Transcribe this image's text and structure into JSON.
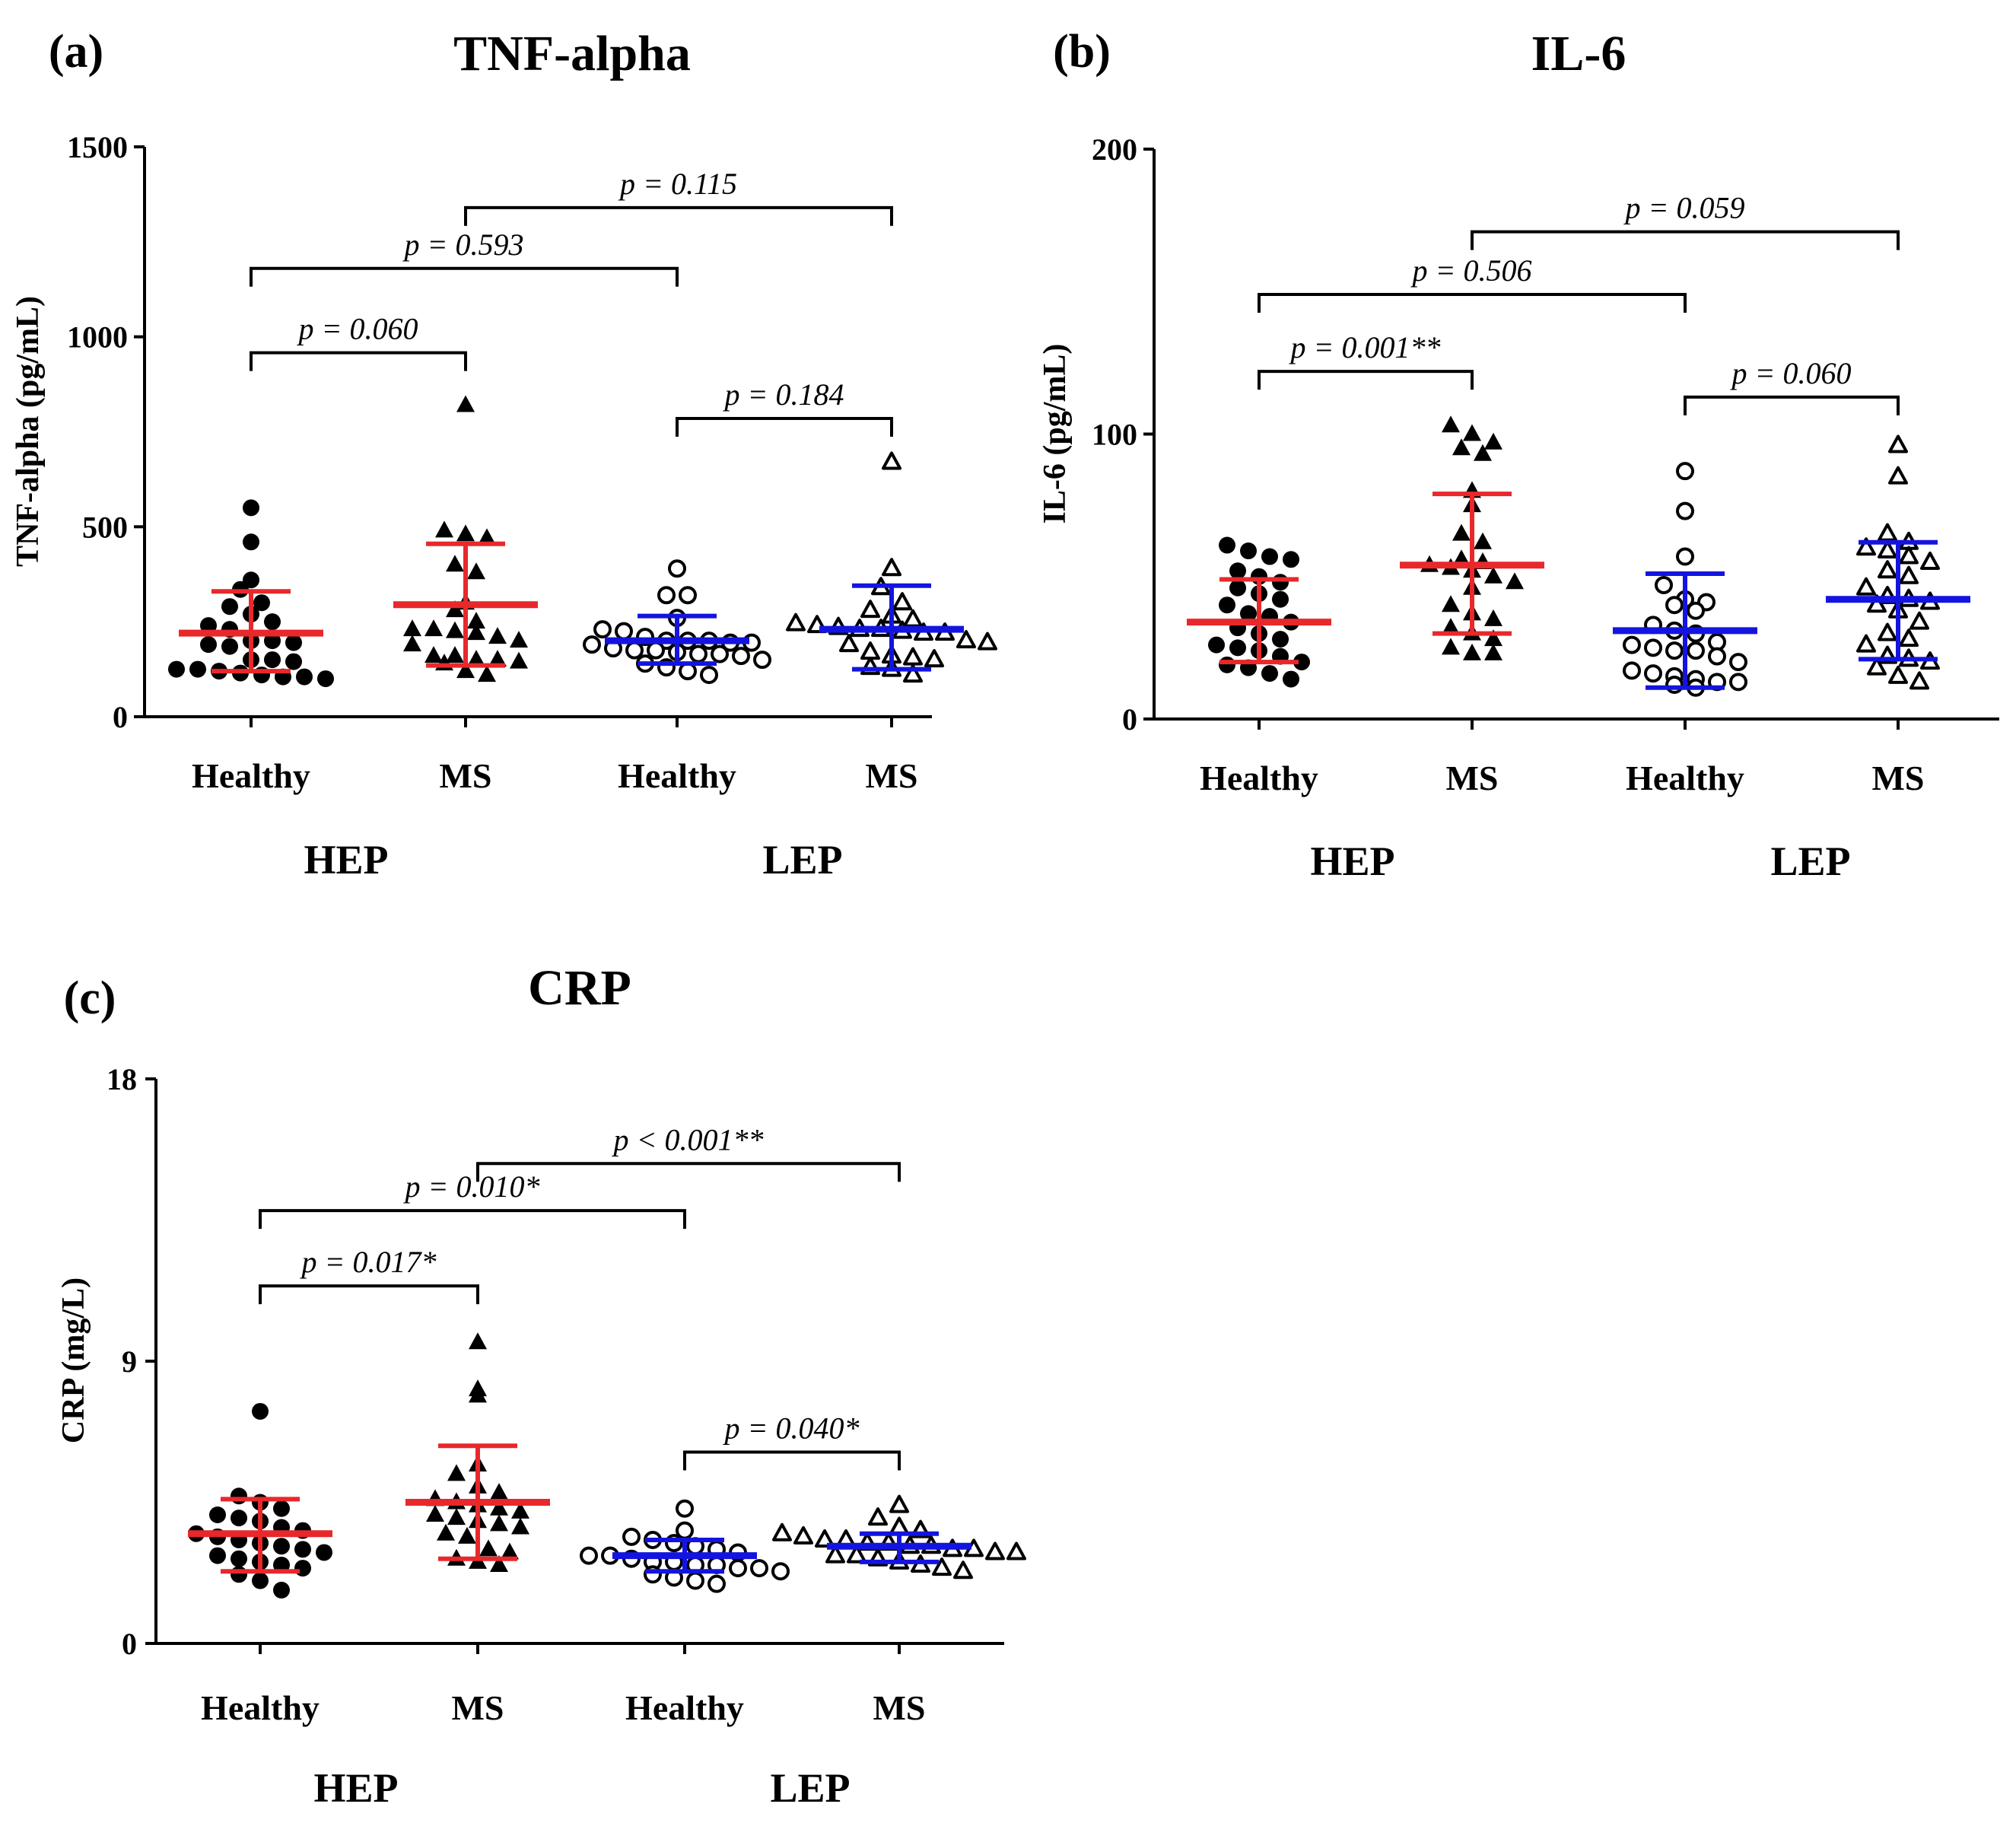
{
  "chart_data": [
    {
      "id": "a",
      "type": "scatter",
      "panel_label": "(a)",
      "title": "TNF-alpha",
      "ylabel": "TNF-alpha (pg/mL)",
      "ylim": [
        0,
        1500
      ],
      "yticks": [
        "0",
        "500",
        "1000",
        "1500"
      ],
      "ytick_values": [
        0,
        500,
        1000,
        1500
      ],
      "categories": [
        "Healthy",
        "MS",
        "Healthy",
        "MS"
      ],
      "groups": [
        {
          "label": "HEP",
          "spans": [
            0,
            1
          ]
        },
        {
          "label": "LEP",
          "spans": [
            2,
            3
          ]
        }
      ],
      "series": [
        {
          "name": "HEP Healthy",
          "marker": "filled-circle",
          "color": "#e8282b",
          "mean": 220,
          "sd_low": 120,
          "sd_high": 330,
          "values": [
            550,
            460,
            360,
            335,
            300,
            290,
            270,
            250,
            240,
            230,
            200,
            200,
            195,
            190,
            185,
            150,
            150,
            145,
            125,
            125,
            120,
            115,
            110,
            105,
            105,
            100
          ]
        },
        {
          "name": "HEP MS",
          "marker": "filled-triangle",
          "color": "#e8282b",
          "mean": 295,
          "sd_low": 135,
          "sd_high": 455,
          "values": [
            820,
            490,
            480,
            470,
            400,
            380,
            300,
            280,
            250,
            230,
            230,
            225,
            220,
            210,
            200,
            190,
            160,
            160,
            150,
            150,
            145,
            140,
            120,
            110
          ]
        },
        {
          "name": "LEP Healthy",
          "marker": "open-circle",
          "color": "#1414e0",
          "mean": 200,
          "sd_low": 140,
          "sd_high": 265,
          "values": [
            390,
            320,
            320,
            260,
            230,
            225,
            210,
            200,
            200,
            200,
            195,
            195,
            190,
            180,
            175,
            175,
            170,
            165,
            165,
            160,
            150,
            140,
            130,
            120,
            110
          ]
        },
        {
          "name": "LEP MS",
          "marker": "open-triangle",
          "color": "#1414e0",
          "mean": 230,
          "sd_low": 125,
          "sd_high": 345,
          "values": [
            670,
            390,
            340,
            300,
            280,
            265,
            255,
            245,
            240,
            235,
            230,
            230,
            225,
            220,
            220,
            200,
            195,
            190,
            170,
            160,
            155,
            150,
            130,
            125,
            110
          ]
        }
      ],
      "comparisons": [
        {
          "from": 0,
          "to": 1,
          "level": 958,
          "text": "p = 0.060"
        },
        {
          "from": 0,
          "to": 2,
          "level": 1180,
          "text": "p = 0.593"
        },
        {
          "from": 1,
          "to": 3,
          "level": 1340,
          "text": "p = 0.115"
        },
        {
          "from": 2,
          "to": 3,
          "level": 785,
          "text": "p = 0.184"
        }
      ]
    },
    {
      "id": "b",
      "type": "scatter",
      "panel_label": "(b)",
      "title": "IL-6",
      "ylabel": "IL-6 (pg/mL)",
      "ylim": [
        0,
        200
      ],
      "yticks": [
        "0",
        "100",
        "200"
      ],
      "ytick_values": [
        0,
        100,
        200
      ],
      "categories": [
        "Healthy",
        "MS",
        "Healthy",
        "MS"
      ],
      "groups": [
        {
          "label": "HEP",
          "spans": [
            0,
            1
          ]
        },
        {
          "label": "LEP",
          "spans": [
            2,
            3
          ]
        }
      ],
      "series": [
        {
          "name": "HEP Healthy",
          "marker": "filled-circle",
          "color": "#e8282b",
          "mean": 34,
          "sd_low": 20,
          "sd_high": 49,
          "values": [
            61,
            59,
            57,
            56,
            52,
            50,
            48,
            46,
            44,
            42,
            40,
            37,
            36,
            34,
            32,
            30,
            28,
            26,
            25,
            24,
            22,
            20,
            19,
            18,
            16,
            14
          ]
        },
        {
          "name": "HEP MS",
          "marker": "filled-triangle",
          "color": "#e8282b",
          "mean": 54,
          "sd_low": 30,
          "sd_high": 79,
          "values": [
            103,
            100,
            97,
            95,
            93,
            80,
            75,
            65,
            62,
            56,
            55,
            54,
            53,
            52,
            50,
            48,
            46,
            40,
            37,
            35,
            32,
            30,
            28,
            25,
            23,
            23
          ]
        },
        {
          "name": "LEP Healthy",
          "marker": "open-circle",
          "color": "#1414e0",
          "mean": 31,
          "sd_low": 11,
          "sd_high": 51,
          "values": [
            87,
            73,
            57,
            47,
            42,
            41,
            40,
            38,
            33,
            31,
            30,
            27,
            26,
            25,
            24,
            24,
            22,
            20,
            17,
            16,
            15,
            14,
            13,
            13,
            12,
            11
          ]
        },
        {
          "name": "LEP MS",
          "marker": "open-triangle",
          "color": "#1414e0",
          "mean": 42,
          "sd_low": 21,
          "sd_high": 62,
          "values": [
            96,
            85,
            65,
            62,
            60,
            59,
            57,
            55,
            52,
            50,
            46,
            43,
            42,
            41,
            40,
            38,
            34,
            30,
            28,
            26,
            22,
            21,
            20,
            18,
            15,
            13
          ]
        }
      ],
      "comparisons": [
        {
          "from": 0,
          "to": 1,
          "level": 122,
          "text": "p = 0.001**"
        },
        {
          "from": 0,
          "to": 2,
          "level": 149,
          "text": "p = 0.506"
        },
        {
          "from": 1,
          "to": 3,
          "level": 171,
          "text": "p = 0.059"
        },
        {
          "from": 2,
          "to": 3,
          "level": 113,
          "text": "p = 0.060"
        }
      ]
    },
    {
      "id": "c",
      "type": "scatter",
      "panel_label": "(c)",
      "title": "CRP",
      "ylabel": "CRP (mg/L)",
      "ylim": [
        0,
        18
      ],
      "yticks": [
        "0",
        "9",
        "18"
      ],
      "ytick_values": [
        0,
        9,
        18
      ],
      "categories": [
        "Healthy",
        "MS",
        "Healthy",
        "MS"
      ],
      "groups": [
        {
          "label": "HEP",
          "spans": [
            0,
            1
          ]
        },
        {
          "label": "LEP",
          "spans": [
            2,
            3
          ]
        }
      ],
      "series": [
        {
          "name": "HEP Healthy",
          "marker": "filled-circle",
          "color": "#e8282b",
          "mean": 3.5,
          "sd_low": 2.3,
          "sd_high": 4.6,
          "values": [
            7.4,
            4.7,
            4.5,
            4.3,
            4.1,
            4.0,
            3.9,
            3.7,
            3.6,
            3.5,
            3.4,
            3.3,
            3.2,
            3.1,
            3.0,
            2.9,
            2.8,
            2.7,
            2.6,
            2.5,
            2.4,
            2.2,
            2.0,
            1.7
          ]
        },
        {
          "name": "HEP MS",
          "marker": "filled-triangle",
          "color": "#e8282b",
          "mean": 4.5,
          "sd_low": 2.7,
          "sd_high": 6.3,
          "values": [
            9.6,
            8.1,
            7.9,
            5.7,
            5.4,
            5.0,
            4.8,
            4.6,
            4.5,
            4.4,
            4.3,
            4.2,
            4.1,
            4.0,
            3.9,
            3.8,
            3.7,
            3.5,
            3.4,
            3.0,
            2.9,
            2.7,
            2.6,
            2.5
          ]
        },
        {
          "name": "LEP Healthy",
          "marker": "open-circle",
          "color": "#1414e0",
          "mean": 2.8,
          "sd_low": 2.3,
          "sd_high": 3.3,
          "values": [
            4.3,
            3.6,
            3.4,
            3.3,
            3.2,
            3.1,
            3.0,
            2.9,
            2.8,
            2.8,
            2.7,
            2.6,
            2.6,
            2.5,
            2.5,
            2.4,
            2.4,
            2.3,
            2.2,
            2.1,
            2.0,
            1.9
          ]
        },
        {
          "name": "LEP MS",
          "marker": "open-triangle",
          "color": "#1414e0",
          "mean": 3.1,
          "sd_low": 2.6,
          "sd_high": 3.5,
          "values": [
            4.4,
            4.0,
            3.7,
            3.6,
            3.5,
            3.4,
            3.3,
            3.3,
            3.2,
            3.2,
            3.1,
            3.1,
            3.0,
            3.0,
            2.9,
            2.9,
            2.8,
            2.8,
            2.7,
            2.6,
            2.5,
            2.4,
            2.3
          ]
        }
      ],
      "comparisons": [
        {
          "from": 0,
          "to": 1,
          "level": 11.4,
          "text": "p = 0.017*"
        },
        {
          "from": 0,
          "to": 2,
          "level": 13.8,
          "text": "p = 0.010*"
        },
        {
          "from": 1,
          "to": 3,
          "level": 15.3,
          "text": "p < 0.001**"
        },
        {
          "from": 2,
          "to": 3,
          "level": 6.1,
          "text": "p = 0.040*"
        }
      ]
    }
  ]
}
